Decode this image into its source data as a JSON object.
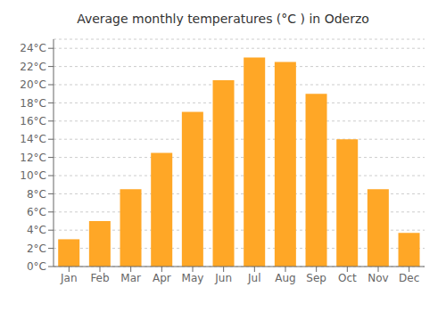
{
  "chart_data": {
    "type": "bar",
    "title": "Average monthly temperatures (°C ) in Oderzo",
    "categories": [
      "Jan",
      "Feb",
      "Mar",
      "Apr",
      "May",
      "Jun",
      "Jul",
      "Aug",
      "Sep",
      "Oct",
      "Nov",
      "Dec"
    ],
    "values": [
      3.0,
      5.0,
      8.5,
      12.5,
      17.0,
      20.5,
      23.0,
      22.5,
      19.0,
      14.0,
      8.5,
      3.7
    ],
    "color": "#FFA726",
    "ylim": [
      0,
      25
    ],
    "yticks": [
      {
        "value": 0,
        "label": "0°C"
      },
      {
        "value": 2,
        "label": "2°C"
      },
      {
        "value": 4,
        "label": "4°C"
      },
      {
        "value": 6,
        "label": "6°C"
      },
      {
        "value": 8,
        "label": "8°C"
      },
      {
        "value": 10,
        "label": "10°C"
      },
      {
        "value": 12,
        "label": "12°C"
      },
      {
        "value": 14,
        "label": "14°C"
      },
      {
        "value": 16,
        "label": "16°C"
      },
      {
        "value": 18,
        "label": "18°C"
      },
      {
        "value": 20,
        "label": "20°C"
      },
      {
        "value": 22,
        "label": "22°C"
      },
      {
        "value": 24,
        "label": "24°C"
      }
    ],
    "grid": true
  }
}
